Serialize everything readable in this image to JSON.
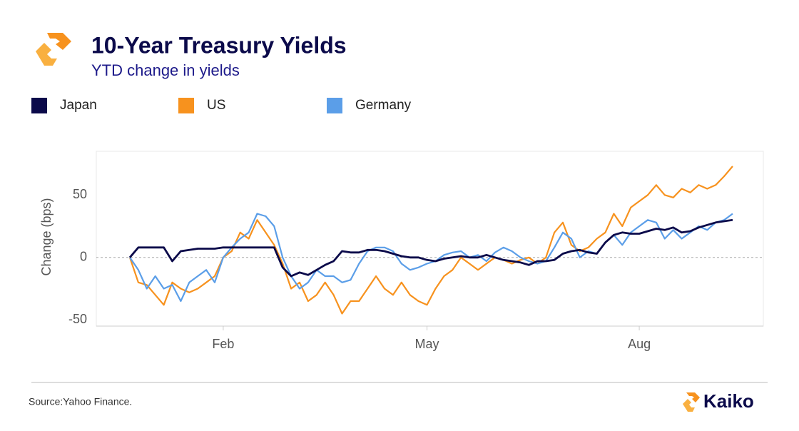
{
  "chart_data": {
    "type": "line",
    "title": "10-Year Treasury Yields",
    "subtitle": "YTD change in yields",
    "ylabel": "Change (bps)",
    "source": "Source:Yahoo Finance.",
    "brand": "Kaiko",
    "categories": [
      null,
      null,
      null,
      null,
      null,
      null,
      null,
      null,
      null,
      null,
      null,
      "Feb",
      null,
      null,
      null,
      null,
      null,
      null,
      null,
      null,
      null,
      null,
      null,
      null,
      null,
      null,
      null,
      null,
      null,
      null,
      null,
      null,
      null,
      null,
      null,
      "May",
      null,
      null,
      null,
      null,
      null,
      null,
      null,
      null,
      null,
      null,
      null,
      null,
      null,
      null,
      null,
      null,
      null,
      null,
      null,
      null,
      null,
      null,
      null,
      null,
      "Aug",
      null,
      null,
      null,
      null,
      null,
      null,
      null,
      null,
      null,
      null,
      null
    ],
    "ylim": [
      -55,
      85
    ],
    "yticks": [
      -50,
      0,
      50
    ],
    "zero_line": true,
    "legend": "top-left",
    "series": [
      {
        "name": "Japan",
        "color": "#0b0a4a",
        "values": [
          0,
          8,
          8,
          8,
          8,
          -3,
          5,
          6,
          7,
          7,
          7,
          8,
          8,
          8,
          8,
          8,
          8,
          8,
          -8,
          -15,
          -12,
          -14,
          -10,
          -6,
          -3,
          5,
          4,
          4,
          6,
          6,
          5,
          3,
          1,
          0,
          0,
          -2,
          -3,
          -1,
          0,
          1,
          0,
          0,
          2,
          0,
          -2,
          -3,
          -4,
          -6,
          -3,
          -3,
          -2,
          3,
          5,
          6,
          4,
          3,
          12,
          18,
          20,
          19,
          19,
          21,
          23,
          22,
          24,
          20,
          21,
          24,
          26,
          28,
          29,
          30
        ]
      },
      {
        "name": "US",
        "color": "#f7921e",
        "values": [
          0,
          -20,
          -22,
          -30,
          -38,
          -20,
          -25,
          -28,
          -25,
          -20,
          -15,
          0,
          5,
          20,
          15,
          30,
          20,
          10,
          -5,
          -25,
          -20,
          -35,
          -30,
          -20,
          -30,
          -45,
          -35,
          -35,
          -25,
          -15,
          -25,
          -30,
          -20,
          -30,
          -35,
          -38,
          -25,
          -15,
          -10,
          0,
          -5,
          -10,
          -5,
          0,
          -2,
          -5,
          -2,
          0,
          -5,
          0,
          20,
          28,
          10,
          5,
          8,
          15,
          20,
          35,
          25,
          40,
          45,
          50,
          58,
          50,
          48,
          55,
          52,
          58,
          55,
          58,
          65,
          73
        ]
      },
      {
        "name": "Germany",
        "color": "#5b9ee8",
        "values": [
          0,
          -10,
          -25,
          -15,
          -25,
          -22,
          -35,
          -20,
          -15,
          -10,
          -20,
          0,
          8,
          15,
          20,
          35,
          33,
          25,
          0,
          -15,
          -25,
          -20,
          -10,
          -15,
          -15,
          -20,
          -18,
          -5,
          5,
          8,
          8,
          5,
          -5,
          -10,
          -8,
          -5,
          -3,
          2,
          4,
          5,
          0,
          2,
          -3,
          4,
          8,
          5,
          0,
          -3,
          -5,
          -3,
          8,
          20,
          15,
          0,
          5,
          3,
          12,
          18,
          10,
          20,
          25,
          30,
          28,
          15,
          22,
          15,
          20,
          25,
          22,
          28,
          30,
          35
        ]
      }
    ]
  }
}
